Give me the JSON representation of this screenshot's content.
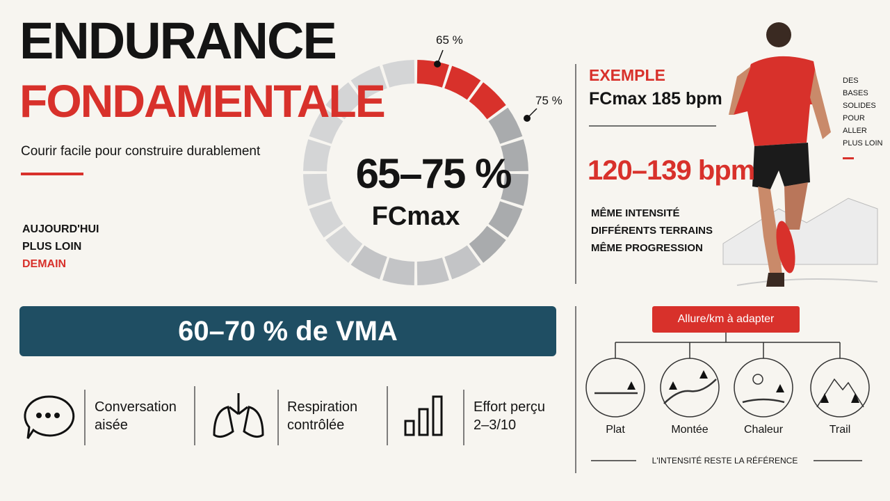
{
  "header": {
    "title_line1": "ENDURANCE",
    "title_line2": "FONDAMENTALE",
    "subtitle": "Courir facile pour construire durablement"
  },
  "motto": [
    "AUJOURD'HUI",
    "PLUS LOIN",
    "DEMAIN"
  ],
  "gauge": {
    "start_label": "65 %",
    "end_label": "75 %",
    "main": "65–75 %",
    "unit": "FCmax"
  },
  "example": {
    "label": "EXEMPLE",
    "fcmax": "FCmax 185 bpm",
    "range": "120–139 bpm",
    "notes": [
      "MÊME INTENSITÉ",
      "DIFFÉRENTS TERRAINS",
      "MÊME PROGRESSION"
    ]
  },
  "side_note": [
    "DES",
    "BASES",
    "SOLIDES",
    "POUR",
    "ALLER",
    "PLUS LOIN"
  ],
  "vma_banner": "60–70 % de VMA",
  "indicators": [
    {
      "line1": "Conversation",
      "line2": "aisée"
    },
    {
      "line1": "Respiration",
      "line2": "contrôlée"
    },
    {
      "line1": "Effort perçu",
      "line2": "2–3/10"
    }
  ],
  "pace": {
    "title": "Allure/km à adapter",
    "terrains": [
      "Plat",
      "Montée",
      "Chaleur",
      "Trail"
    ],
    "footer": "L'INTENSITÉ RESTE LA RÉFÉRENCE"
  }
}
